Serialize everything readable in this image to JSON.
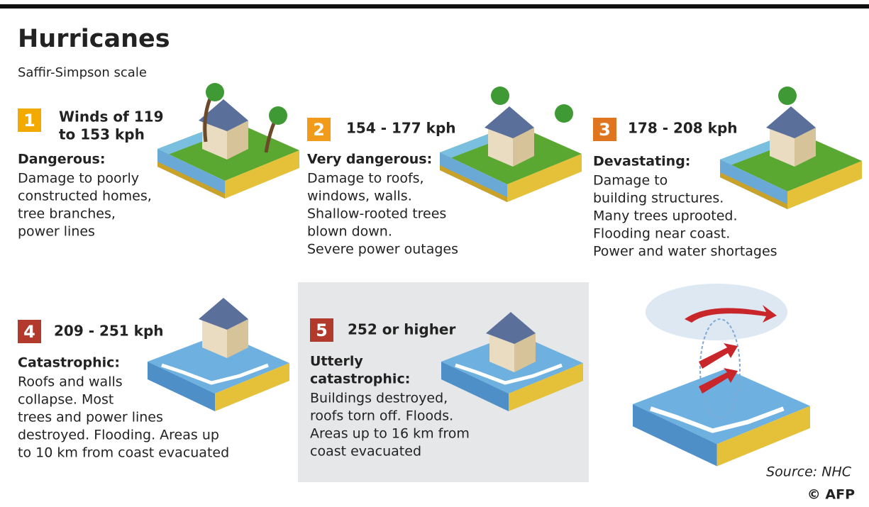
{
  "header": {
    "title": "Hurricanes",
    "subtitle": "Saffir-Simpson scale"
  },
  "categories": [
    {
      "number": "1",
      "wind": [
        "Winds of 119",
        "to 153 kph"
      ],
      "label": [
        "Dangerous:"
      ],
      "description": [
        "Damage to poorly",
        "constructed homes,",
        "tree branches,",
        "power lines"
      ]
    },
    {
      "number": "2",
      "wind": [
        "154 - 177 kph"
      ],
      "label": [
        "Very dangerous:"
      ],
      "description": [
        "Damage to roofs,",
        "windows, walls.",
        "Shallow-rooted trees",
        "blown down.",
        "Severe power outages"
      ]
    },
    {
      "number": "3",
      "wind": [
        "178 - 208 kph"
      ],
      "label": [
        "Devastating:"
      ],
      "description": [
        "Damage to",
        "building structures.",
        "Many trees uprooted.",
        "Flooding near coast.",
        "Power and water shortages"
      ]
    },
    {
      "number": "4",
      "wind": [
        "209 - 251 kph"
      ],
      "label": [
        "Catastrophic:"
      ],
      "description": [
        "Roofs and walls",
        "collapse. Most",
        "trees and power lines",
        "destroyed. Flooding. Areas up",
        "to 10 km from coast evacuated"
      ]
    },
    {
      "number": "5",
      "wind": [
        "252 or higher"
      ],
      "label": [
        "Utterly",
        "catastrophic:"
      ],
      "description": [
        "Buildings destroyed,",
        "roofs torn off. Floods.",
        "Areas up to 16 km from",
        "coast evacuated"
      ]
    }
  ],
  "footer": {
    "source": "Source: NHC",
    "credit": "© AFP"
  }
}
